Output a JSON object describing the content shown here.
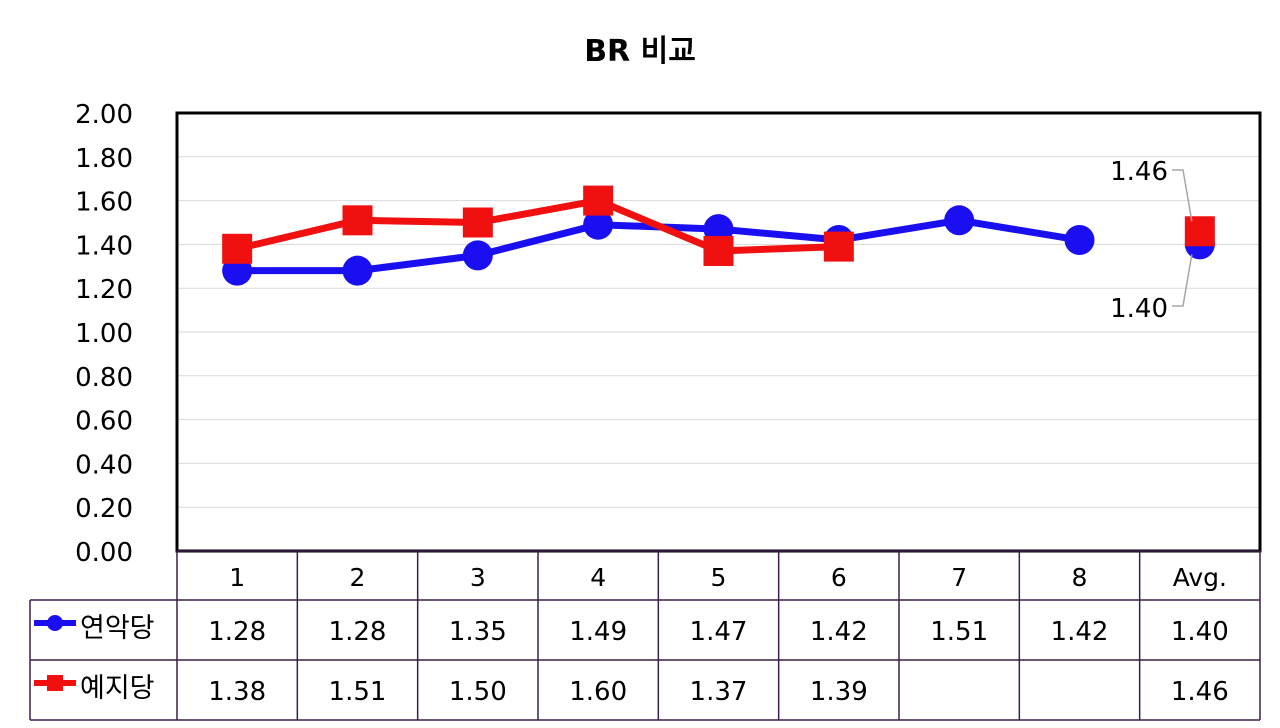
{
  "chart_data": {
    "type": "line",
    "title": "BR 비교",
    "categories": [
      "1",
      "2",
      "3",
      "4",
      "5",
      "6",
      "7",
      "8",
      "Avg."
    ],
    "ylim": [
      0,
      2.0
    ],
    "yticks": [
      "0.00",
      "0.20",
      "0.40",
      "0.60",
      "0.80",
      "1.00",
      "1.20",
      "1.40",
      "1.60",
      "1.80",
      "2.00"
    ],
    "grid": true,
    "legend": "data-table",
    "series": [
      {
        "name": "연악당",
        "color": "#1a0ff0",
        "marker": "circle",
        "values": [
          1.28,
          1.28,
          1.35,
          1.49,
          1.47,
          1.42,
          1.51,
          1.42,
          1.4
        ],
        "labels": [
          "1.28",
          "1.28",
          "1.35",
          "1.49",
          "1.47",
          "1.42",
          "1.51",
          "1.42",
          "1.40"
        ]
      },
      {
        "name": "예지당",
        "color": "#f01010",
        "marker": "square",
        "values": [
          1.38,
          1.51,
          1.5,
          1.6,
          1.37,
          1.39,
          null,
          null,
          1.46
        ],
        "labels": [
          "1.38",
          "1.51",
          "1.50",
          "1.60",
          "1.37",
          "1.39",
          "",
          "",
          "1.46"
        ]
      }
    ],
    "annotations": [
      "1.46",
      "1.40"
    ]
  }
}
